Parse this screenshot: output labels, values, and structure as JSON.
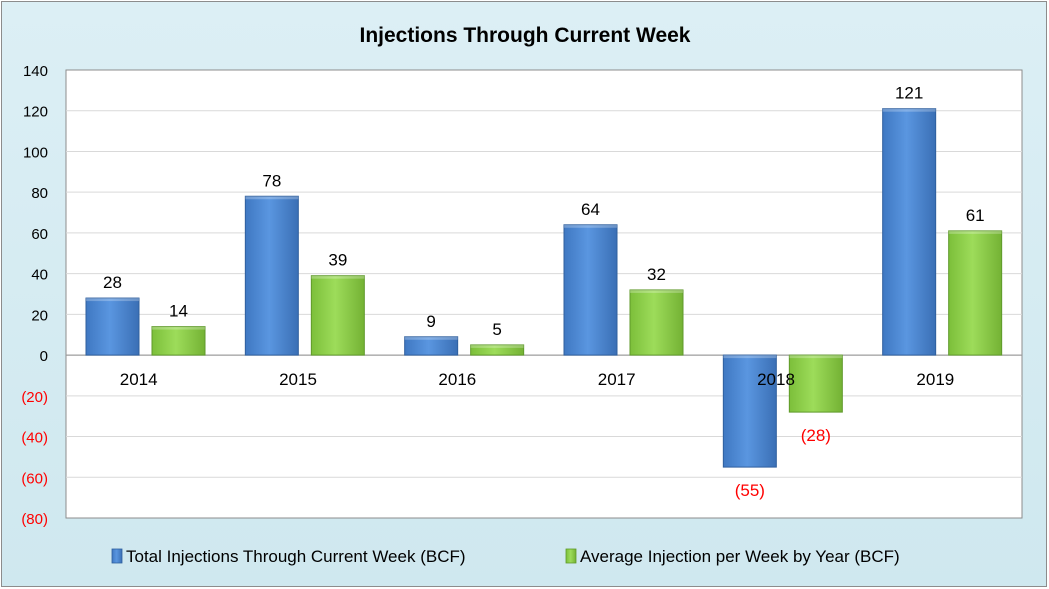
{
  "chart_data": {
    "type": "bar",
    "title": "Injections Through Current Week",
    "xlabel": "",
    "ylabel": "",
    "categories": [
      "2014",
      "2015",
      "2016",
      "2017",
      "2018",
      "2019"
    ],
    "series": [
      {
        "name": "Total Injections Through Current Week (BCF)",
        "values": [
          28,
          78,
          9,
          64,
          -55,
          121
        ],
        "labels": [
          "28",
          "78",
          "9",
          "64",
          "(55)",
          "121"
        ],
        "color": "#5590d8"
      },
      {
        "name": "Average Injection per Week by Year (BCF)",
        "values": [
          14,
          39,
          5,
          32,
          -28,
          61
        ],
        "labels": [
          "14",
          "39",
          "5",
          "32",
          "(28)",
          "61"
        ],
        "color": "#92d050"
      }
    ],
    "ylim": [
      -80,
      140
    ],
    "yticks": [
      140,
      120,
      100,
      80,
      60,
      40,
      20,
      0,
      -20,
      -40,
      -60,
      -80
    ],
    "ytick_labels": [
      "140",
      "120",
      "100",
      "80",
      "60",
      "40",
      "20",
      "0",
      "(20)",
      "(40)",
      "(60)",
      "(80)"
    ],
    "negative_label_color": "#ff0000",
    "grid": true,
    "legend_position": "bottom",
    "background_color": "#daeef3",
    "plot_background_color": "#ffffff"
  }
}
